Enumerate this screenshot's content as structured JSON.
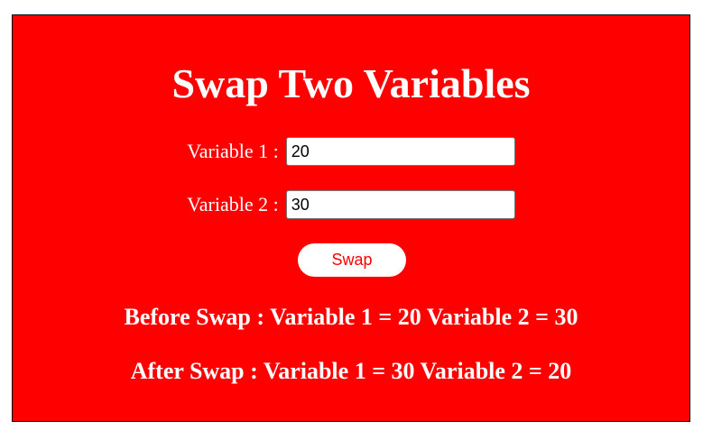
{
  "page": {
    "title": "Swap Two Variables",
    "background_color": "#ff0000",
    "text_color": "#ffffff"
  },
  "form": {
    "var1_label": "Variable 1 :",
    "var1_value": "20",
    "var2_label": "Variable 2 :",
    "var2_value": "30",
    "swap_label": "Swap"
  },
  "results": {
    "before": "Before Swap : Variable 1 = 20 Variable 2 = 30",
    "after": "After Swap : Variable 1 = 30 Variable 2 = 20"
  }
}
